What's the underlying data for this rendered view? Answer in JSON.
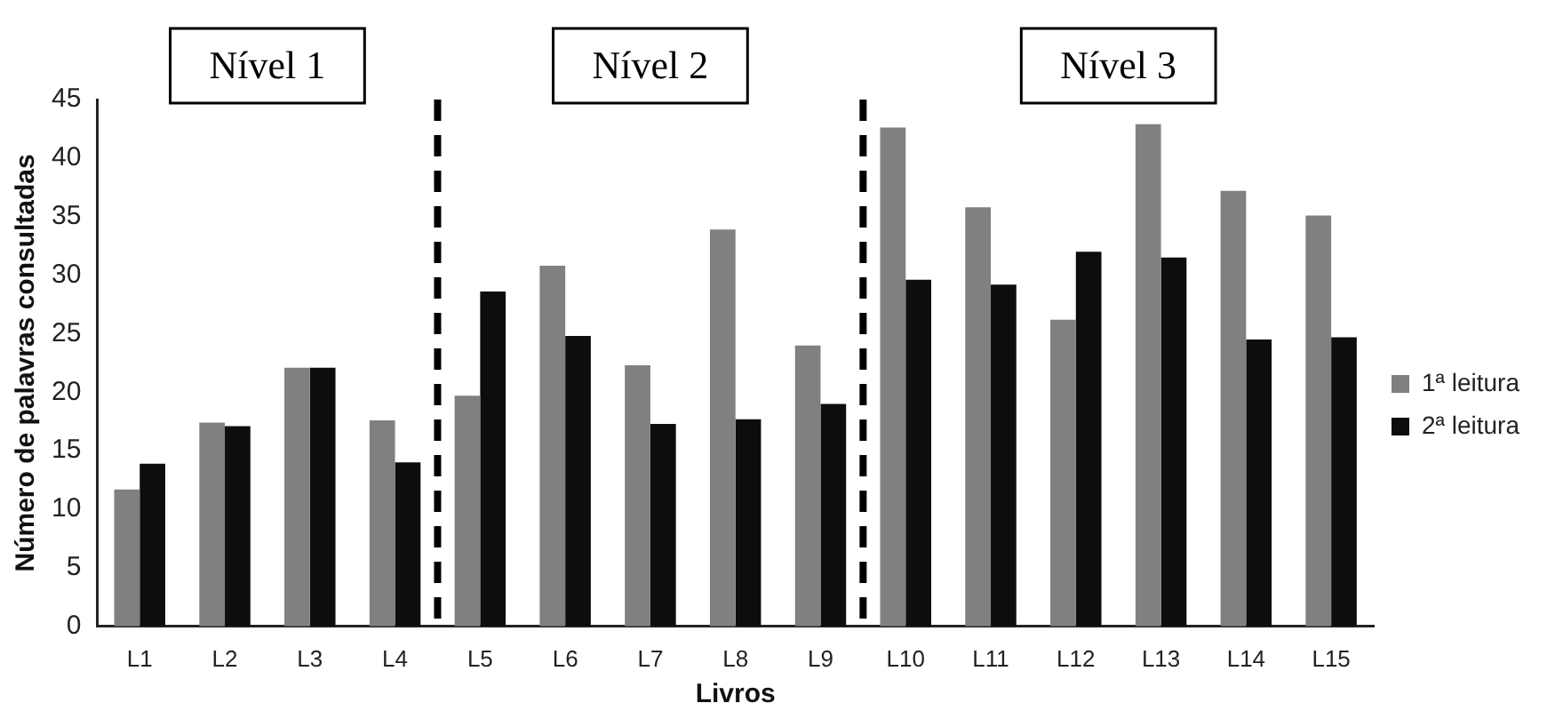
{
  "chart_data": {
    "type": "bar",
    "xlabel": "Livros",
    "ylabel": "Número de palavras consultadas",
    "categories": [
      "L1",
      "L2",
      "L3",
      "L4",
      "L5",
      "L6",
      "L7",
      "L8",
      "L9",
      "L10",
      "L11",
      "L12",
      "L13",
      "L14",
      "L15"
    ],
    "series": [
      {
        "name": "1ª leitura",
        "color": "#808080",
        "values": [
          11.7,
          17.4,
          22.1,
          17.6,
          19.7,
          30.8,
          22.3,
          33.9,
          24.0,
          42.6,
          35.8,
          26.2,
          42.9,
          37.2,
          35.1
        ]
      },
      {
        "name": "2ª leitura",
        "color": "#0d0d0d",
        "values": [
          13.9,
          17.1,
          22.1,
          14.0,
          28.6,
          24.8,
          17.3,
          17.7,
          19.0,
          29.6,
          29.2,
          32.0,
          31.5,
          24.5,
          24.7
        ]
      }
    ],
    "ylim": [
      0,
      45
    ],
    "yticks": [
      0,
      5,
      10,
      15,
      20,
      25,
      30,
      35,
      40,
      45
    ],
    "grid": false,
    "legend": "right",
    "annotations": [
      "Nível 1",
      "Nível 2",
      "Nível 3"
    ]
  }
}
